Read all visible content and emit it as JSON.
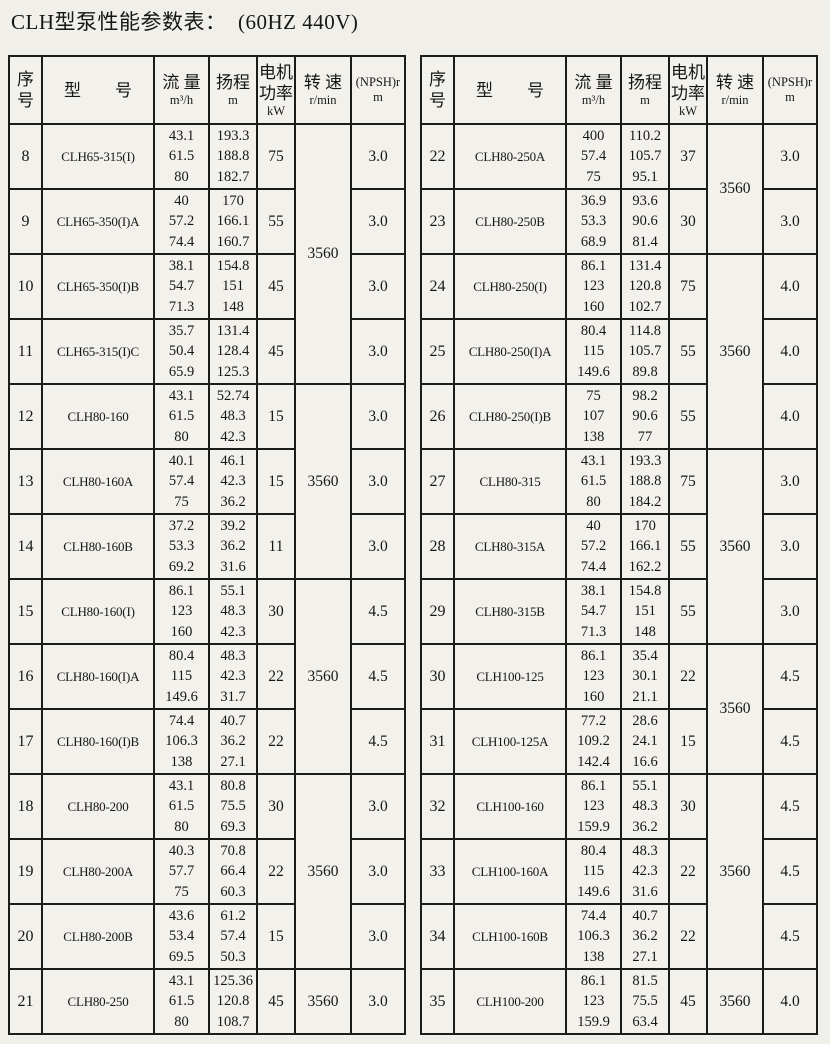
{
  "title": "CLH型泵性能参数表：  (60HZ 440V)",
  "columns": [
    {
      "key": "serial",
      "lines": [
        "序",
        "号"
      ]
    },
    {
      "key": "model",
      "lines": [
        "型　　号"
      ]
    },
    {
      "key": "flow",
      "lines": [
        "流 量",
        "m³/h"
      ]
    },
    {
      "key": "head",
      "lines": [
        "扬程",
        "m"
      ]
    },
    {
      "key": "power",
      "lines": [
        "电机",
        "功率",
        "kW"
      ]
    },
    {
      "key": "speed",
      "lines": [
        "转 速",
        "r/min"
      ]
    },
    {
      "key": "npsh",
      "lines": [
        "(NPSH)r",
        "m"
      ]
    }
  ],
  "tables": [
    {
      "rows": [
        {
          "no": "8",
          "model": "CLH65-315(I)",
          "flow": [
            "43.1",
            "61.5",
            "80"
          ],
          "head": [
            "193.3",
            "188.8",
            "182.7"
          ],
          "power": "75",
          "npsh": "3.0"
        },
        {
          "no": "9",
          "model": "CLH65-350(I)A",
          "flow": [
            "40",
            "57.2",
            "74.4"
          ],
          "head": [
            "170",
            "166.1",
            "160.7"
          ],
          "power": "55",
          "npsh": "3.0"
        },
        {
          "no": "10",
          "model": "CLH65-350(I)B",
          "flow": [
            "38.1",
            "54.7",
            "71.3"
          ],
          "head": [
            "154.8",
            "151",
            "148"
          ],
          "power": "45",
          "npsh": "3.0"
        },
        {
          "no": "11",
          "model": "CLH65-315(I)C",
          "flow": [
            "35.7",
            "50.4",
            "65.9"
          ],
          "head": [
            "131.4",
            "128.4",
            "125.3"
          ],
          "power": "45",
          "npsh": "3.0"
        },
        {
          "no": "12",
          "model": "CLH80-160",
          "flow": [
            "43.1",
            "61.5",
            "80"
          ],
          "head": [
            "52.74",
            "48.3",
            "42.3"
          ],
          "power": "15",
          "npsh": "3.0"
        },
        {
          "no": "13",
          "model": "CLH80-160A",
          "flow": [
            "40.1",
            "57.4",
            "75"
          ],
          "head": [
            "46.1",
            "42.3",
            "36.2"
          ],
          "power": "15",
          "npsh": "3.0"
        },
        {
          "no": "14",
          "model": "CLH80-160B",
          "flow": [
            "37.2",
            "53.3",
            "69.2"
          ],
          "head": [
            "39.2",
            "36.2",
            "31.6"
          ],
          "power": "11",
          "npsh": "3.0"
        },
        {
          "no": "15",
          "model": "CLH80-160(I)",
          "flow": [
            "86.1",
            "123",
            "160"
          ],
          "head": [
            "55.1",
            "48.3",
            "42.3"
          ],
          "power": "30",
          "npsh": "4.5"
        },
        {
          "no": "16",
          "model": "CLH80-160(I)A",
          "flow": [
            "80.4",
            "115",
            "149.6"
          ],
          "head": [
            "48.3",
            "42.3",
            "31.7"
          ],
          "power": "22",
          "npsh": "4.5"
        },
        {
          "no": "17",
          "model": "CLH80-160(I)B",
          "flow": [
            "74.4",
            "106.3",
            "138"
          ],
          "head": [
            "40.7",
            "36.2",
            "27.1"
          ],
          "power": "22",
          "npsh": "4.5"
        },
        {
          "no": "18",
          "model": "CLH80-200",
          "flow": [
            "43.1",
            "61.5",
            "80"
          ],
          "head": [
            "80.8",
            "75.5",
            "69.3"
          ],
          "power": "30",
          "npsh": "3.0"
        },
        {
          "no": "19",
          "model": "CLH80-200A",
          "flow": [
            "40.3",
            "57.7",
            "75"
          ],
          "head": [
            "70.8",
            "66.4",
            "60.3"
          ],
          "power": "22",
          "npsh": "3.0"
        },
        {
          "no": "20",
          "model": "CLH80-200B",
          "flow": [
            "43.6",
            "53.4",
            "69.5"
          ],
          "head": [
            "61.2",
            "57.4",
            "50.3"
          ],
          "power": "15",
          "npsh": "3.0"
        },
        {
          "no": "21",
          "model": "CLH80-250",
          "flow": [
            "43.1",
            "61.5",
            "80"
          ],
          "head": [
            "125.36",
            "120.8",
            "108.7"
          ],
          "power": "45",
          "npsh": "3.0"
        }
      ],
      "speed_groups": [
        {
          "from": 0,
          "span": 4,
          "value": "3560"
        },
        {
          "from": 4,
          "span": 3,
          "value": "3560"
        },
        {
          "from": 7,
          "span": 3,
          "value": "3560"
        },
        {
          "from": 10,
          "span": 3,
          "value": "3560"
        },
        {
          "from": 13,
          "span": 1,
          "value": "3560"
        }
      ]
    },
    {
      "rows": [
        {
          "no": "22",
          "model": "CLH80-250A",
          "flow": [
            "400",
            "57.4",
            "75"
          ],
          "head": [
            "110.2",
            "105.7",
            "95.1"
          ],
          "power": "37",
          "npsh": "3.0"
        },
        {
          "no": "23",
          "model": "CLH80-250B",
          "flow": [
            "36.9",
            "53.3",
            "68.9"
          ],
          "head": [
            "93.6",
            "90.6",
            "81.4"
          ],
          "power": "30",
          "npsh": "3.0"
        },
        {
          "no": "24",
          "model": "CLH80-250(I)",
          "flow": [
            "86.1",
            "123",
            "160"
          ],
          "head": [
            "131.4",
            "120.8",
            "102.7"
          ],
          "power": "75",
          "npsh": "4.0"
        },
        {
          "no": "25",
          "model": "CLH80-250(I)A",
          "flow": [
            "80.4",
            "115",
            "149.6"
          ],
          "head": [
            "114.8",
            "105.7",
            "89.8"
          ],
          "power": "55",
          "npsh": "4.0"
        },
        {
          "no": "26",
          "model": "CLH80-250(I)B",
          "flow": [
            "75",
            "107",
            "138"
          ],
          "head": [
            "98.2",
            "90.6",
            "77"
          ],
          "power": "55",
          "npsh": "4.0"
        },
        {
          "no": "27",
          "model": "CLH80-315",
          "flow": [
            "43.1",
            "61.5",
            "80"
          ],
          "head": [
            "193.3",
            "188.8",
            "184.2"
          ],
          "power": "75",
          "npsh": "3.0"
        },
        {
          "no": "28",
          "model": "CLH80-315A",
          "flow": [
            "40",
            "57.2",
            "74.4"
          ],
          "head": [
            "170",
            "166.1",
            "162.2"
          ],
          "power": "55",
          "npsh": "3.0"
        },
        {
          "no": "29",
          "model": "CLH80-315B",
          "flow": [
            "38.1",
            "54.7",
            "71.3"
          ],
          "head": [
            "154.8",
            "151",
            "148"
          ],
          "power": "55",
          "npsh": "3.0"
        },
        {
          "no": "30",
          "model": "CLH100-125",
          "flow": [
            "86.1",
            "123",
            "160"
          ],
          "head": [
            "35.4",
            "30.1",
            "21.1"
          ],
          "power": "22",
          "npsh": "4.5"
        },
        {
          "no": "31",
          "model": "CLH100-125A",
          "flow": [
            "77.2",
            "109.2",
            "142.4"
          ],
          "head": [
            "28.6",
            "24.1",
            "16.6"
          ],
          "power": "15",
          "npsh": "4.5"
        },
        {
          "no": "32",
          "model": "CLH100-160",
          "flow": [
            "86.1",
            "123",
            "159.9"
          ],
          "head": [
            "55.1",
            "48.3",
            "36.2"
          ],
          "power": "30",
          "npsh": "4.5"
        },
        {
          "no": "33",
          "model": "CLH100-160A",
          "flow": [
            "80.4",
            "115",
            "149.6"
          ],
          "head": [
            "48.3",
            "42.3",
            "31.6"
          ],
          "power": "22",
          "npsh": "4.5"
        },
        {
          "no": "34",
          "model": "CLH100-160B",
          "flow": [
            "74.4",
            "106.3",
            "138"
          ],
          "head": [
            "40.7",
            "36.2",
            "27.1"
          ],
          "power": "22",
          "npsh": "4.5"
        },
        {
          "no": "35",
          "model": "CLH100-200",
          "flow": [
            "86.1",
            "123",
            "159.9"
          ],
          "head": [
            "81.5",
            "75.5",
            "63.4"
          ],
          "power": "45",
          "npsh": "4.0"
        }
      ],
      "speed_groups": [
        {
          "from": 0,
          "span": 2,
          "value": "3560"
        },
        {
          "from": 2,
          "span": 3,
          "value": "3560"
        },
        {
          "from": 5,
          "span": 3,
          "value": "3560"
        },
        {
          "from": 8,
          "span": 2,
          "value": "3560"
        },
        {
          "from": 10,
          "span": 3,
          "value": "3560"
        },
        {
          "from": 13,
          "span": 1,
          "value": "3560"
        }
      ]
    }
  ]
}
